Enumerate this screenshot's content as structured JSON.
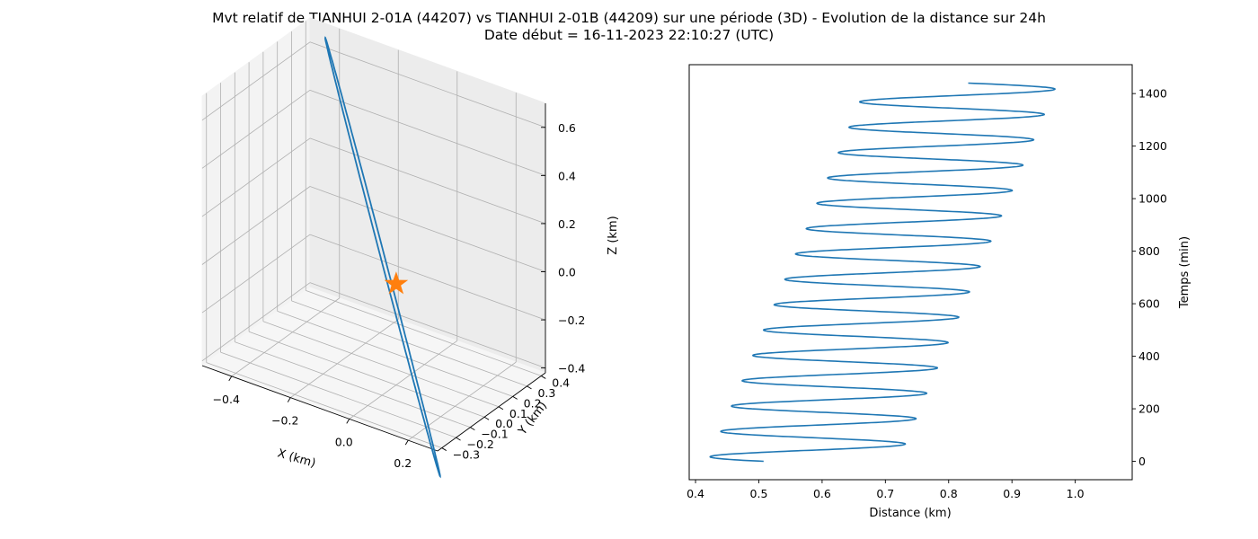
{
  "figure": {
    "title_line1": "Mvt relatif de TIANHUI 2-01A (44207) vs TIANHUI 2-01B (44209) sur une période (3D) - Evolution de la distance sur 24h",
    "title_line2": "Date début = 16-11-2023 22:10:27 (UTC)"
  },
  "colors": {
    "series": "#1f77b4",
    "marker": "#ff7f0e",
    "pane": "#f2f2f2",
    "grid": "#b0b0b0"
  },
  "chart_data": [
    {
      "type": "line3d",
      "xlabel": "X (km)",
      "ylabel": "Y (km)",
      "zlabel": "Z (km)",
      "xticks": [
        "−0.4",
        "−0.2",
        "0.0",
        "0.2"
      ],
      "yticks": [
        "−0.3",
        "−0.2",
        "−0.1",
        "0.0",
        "0.1",
        "0.2",
        "0.3",
        "0.4"
      ],
      "zticks": [
        "−0.4",
        "−0.2",
        "0.0",
        "0.2",
        "0.4",
        "0.6"
      ],
      "xlim": [
        -0.5,
        0.3
      ],
      "ylim": [
        -0.33,
        0.43
      ],
      "zlim": [
        -0.42,
        0.7
      ],
      "grid": true,
      "marker": {
        "shape": "star",
        "x": 0,
        "y": 0,
        "z": 0
      },
      "ellipse": {
        "x_amp": 0.34,
        "y_amp": 0.3,
        "z_amp": 0.62,
        "x_off": -0.07,
        "y_off": 0.05,
        "z_off": 0.06,
        "phase": 0.35
      }
    },
    {
      "type": "line",
      "xlabel": "Distance (km)",
      "ylabel": "Temps (min)",
      "xticks": [
        0.4,
        0.5,
        0.6,
        0.7,
        0.8,
        0.9,
        1.0
      ],
      "yticks": [
        0,
        200,
        400,
        600,
        800,
        1000,
        1200,
        1400
      ],
      "xlim": [
        0.39,
        1.09
      ],
      "ylim": [
        -70,
        1510
      ],
      "ytick_position": "right",
      "grid": false,
      "series": [
        {
          "samples": 1441,
          "t_start": 0,
          "t_end": 1440,
          "center_start": 0.57,
          "center_slope_per_min": 0.000175,
          "amplitude": 0.15,
          "period_min": 96.5,
          "phase_rad": 2.0
        }
      ]
    }
  ]
}
